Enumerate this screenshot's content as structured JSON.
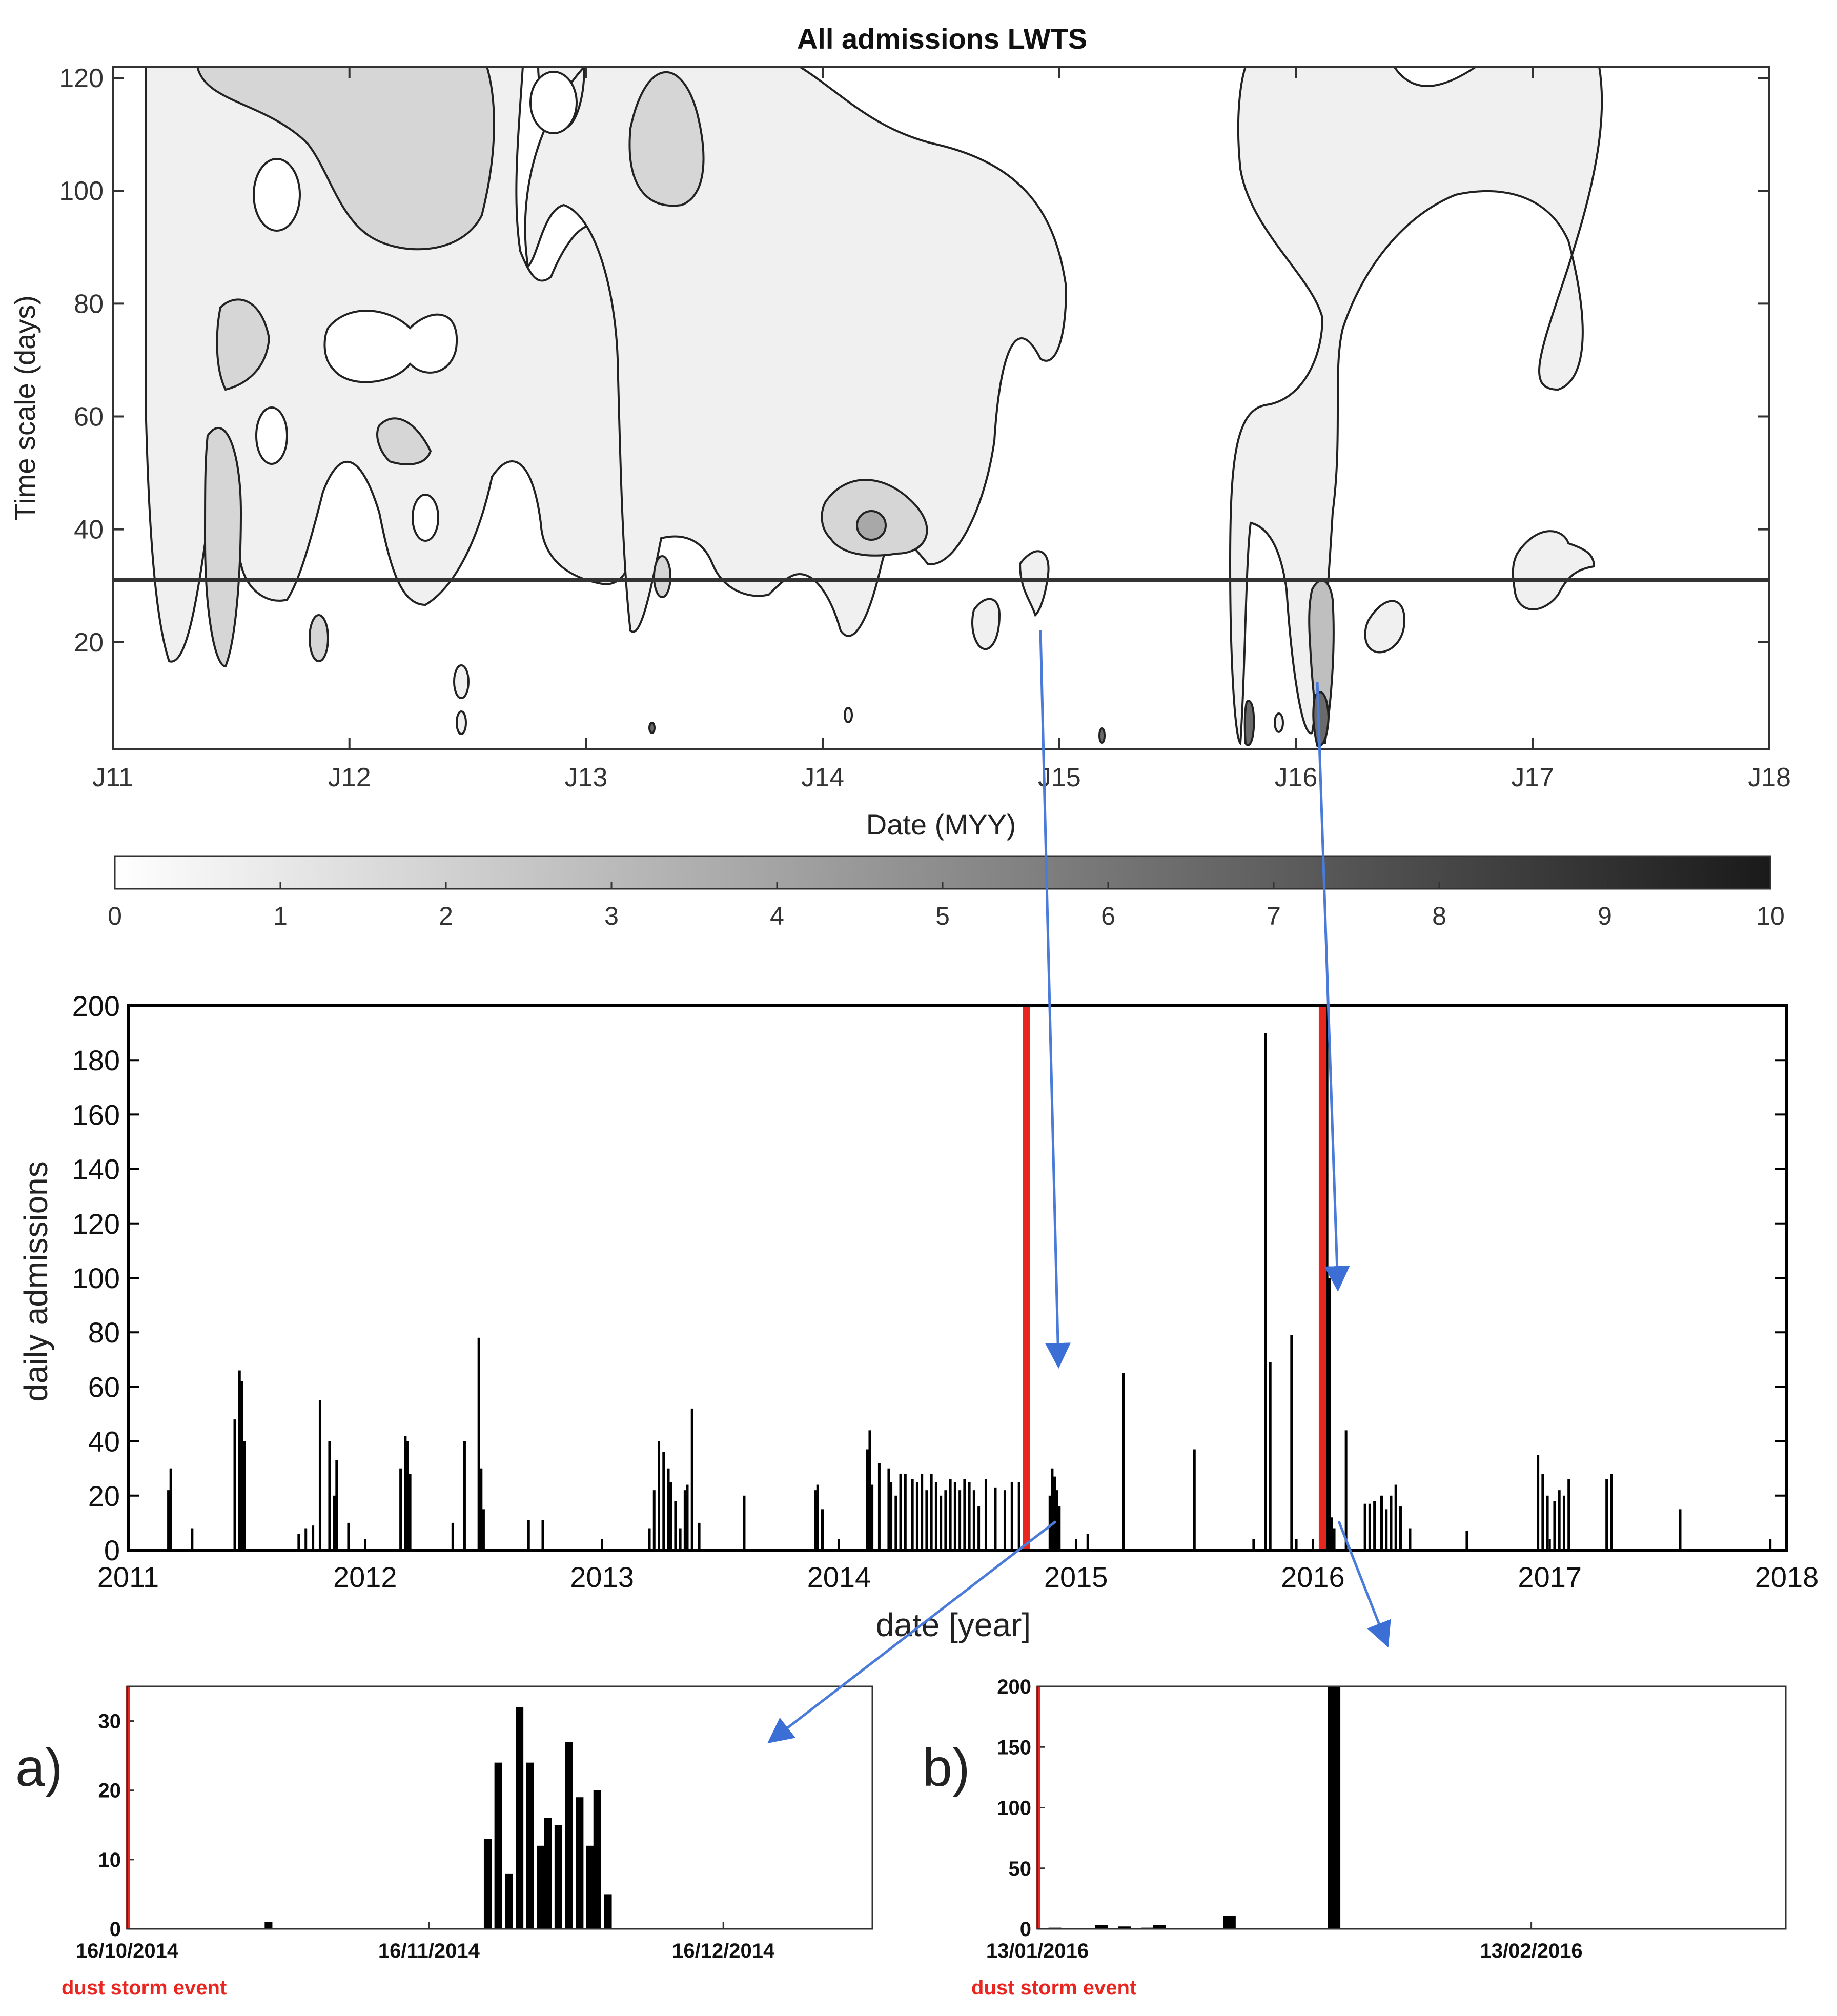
{
  "chart_data": [
    {
      "type": "heatmap",
      "id": "wavelet",
      "title": "All admissions LWTS",
      "xlabel": "Date (MYY)",
      "ylabel": "Time scale (days)",
      "xticks": [
        "J11",
        "J12",
        "J13",
        "J14",
        "J15",
        "J16",
        "J17",
        "J18"
      ],
      "xlim": [
        2011.0,
        2018.0
      ],
      "ylim": [
        1,
        122
      ],
      "yticks": [
        20,
        40,
        60,
        80,
        100,
        120
      ],
      "reference_line_y": 31,
      "colorbar": {
        "min": 0,
        "max": 10,
        "ticks": [
          0,
          1,
          2,
          3,
          4,
          5,
          6,
          7,
          8,
          9,
          10
        ],
        "colormap": [
          "#ffffff",
          "#1a1a1a"
        ]
      },
      "grid": false
    },
    {
      "type": "bar",
      "id": "daily",
      "xlabel": "date [year]",
      "ylabel": "daily admissions",
      "xticks": [
        "2011",
        "2012",
        "2013",
        "2014",
        "2015",
        "2016",
        "2017",
        "2018"
      ],
      "xlim": [
        2011.0,
        2018.0
      ],
      "ylim": [
        0,
        200
      ],
      "yticks": [
        0,
        20,
        40,
        60,
        80,
        100,
        120,
        140,
        160,
        180,
        200
      ],
      "bar_color": "#000000",
      "event_color": "#e8251f",
      "events": [
        2014.79,
        2016.04
      ],
      "series": [
        {
          "x": [
            2011.17,
            2011.18,
            2011.27,
            2011.45,
            2011.47,
            2011.48,
            2011.49,
            2011.72,
            2011.75,
            2011.78,
            2011.81,
            2011.85,
            2011.87,
            2011.88,
            2011.93,
            2012.15,
            2012.17,
            2012.18,
            2012.19,
            2012.37,
            2012.42,
            2012.48,
            2012.49,
            2012.5,
            2012.69,
            2012.75,
            2013.2,
            2013.22,
            2013.24,
            2013.26,
            2013.28,
            2013.29,
            2013.31,
            2013.33,
            2013.35,
            2013.36,
            2013.38,
            2013.41,
            2013.6,
            2013.9,
            2013.91,
            2013.93,
            2014.12,
            2014.13,
            2014.14,
            2014.17,
            2014.21,
            2014.22,
            2014.24,
            2014.26,
            2014.28,
            2014.31,
            2014.33,
            2014.35,
            2014.37,
            2014.39,
            2014.41,
            2014.43,
            2014.45,
            2014.47,
            2014.49,
            2014.51,
            2014.53,
            2014.55,
            2014.57,
            2014.59,
            2014.62,
            2014.66,
            2014.7,
            2014.73,
            2014.76,
            2014.89,
            2014.9,
            2014.91,
            2014.92,
            2014.93,
            2015.05,
            2015.2,
            2015.5,
            2015.75,
            2015.8,
            2015.82,
            2015.91,
            2015.93,
            2016.06,
            2016.07,
            2016.08,
            2016.09,
            2016.14,
            2016.22,
            2016.24,
            2016.26,
            2016.29,
            2016.31,
            2016.33,
            2016.35,
            2016.37,
            2016.41,
            2016.65,
            2016.95,
            2016.97,
            2016.99,
            2017.02,
            2017.04,
            2017.06,
            2017.08,
            2017.24,
            2017.26,
            2017.55,
            2017.93
          ],
          "values": [
            22,
            30,
            8,
            48,
            66,
            62,
            40,
            6,
            8,
            9,
            55,
            40,
            20,
            33,
            10,
            30,
            42,
            40,
            28,
            10,
            40,
            78,
            30,
            15,
            11,
            11,
            8,
            22,
            40,
            36,
            30,
            25,
            18,
            8,
            22,
            24,
            52,
            10,
            20,
            22,
            24,
            15,
            37,
            44,
            24,
            32,
            30,
            25,
            20,
            28,
            28,
            26,
            25,
            28,
            22,
            28,
            25,
            20,
            22,
            26,
            25,
            22,
            26,
            25,
            22,
            16,
            26,
            23,
            22,
            25,
            25,
            20,
            30,
            27,
            22,
            16,
            6,
            65,
            37,
            4,
            190,
            69,
            79,
            4,
            200,
            100,
            12,
            8,
            44,
            17,
            17,
            18,
            20,
            15,
            20,
            24,
            16,
            8,
            7,
            35,
            28,
            20,
            18,
            22,
            20,
            26,
            26,
            28,
            15,
            4
          ]
        }
      ]
    },
    {
      "type": "bar",
      "id": "inset_a",
      "panel_label": "a)",
      "xticks": [
        "16/10/2014",
        "16/11/2014",
        "16/12/2014"
      ],
      "x_start": "2014-10-16",
      "x_days": 77,
      "ylim": [
        0,
        35
      ],
      "yticks": [
        0,
        10,
        20,
        30
      ],
      "event_label": "dust storm event",
      "event_day": 0,
      "series": [
        {
          "x": [
            2014.83,
            2014.892,
            2014.895,
            2014.898,
            2014.901,
            2014.904,
            2014.907,
            2014.909,
            2014.912,
            2014.915,
            2014.918,
            2014.921,
            2014.923,
            2014.926,
            2014.929
          ],
          "values": [
            1,
            13,
            24,
            8,
            32,
            24,
            12,
            16,
            15,
            27,
            19,
            12,
            20,
            5,
            0
          ]
        }
      ]
    },
    {
      "type": "bar",
      "id": "inset_b",
      "panel_label": "b)",
      "xticks": [
        "13/01/2016",
        "13/02/2016"
      ],
      "x_start": "2016-01-13",
      "x_days": 47,
      "ylim": [
        0,
        200
      ],
      "yticks": [
        0,
        50,
        100,
        150,
        200
      ],
      "event_label": "dust storm event",
      "event_day": 0,
      "series": [
        {
          "x": [
            2016.038,
            2016.046,
            2016.05,
            2016.054,
            2016.056,
            2016.068,
            2016.086
          ],
          "values": [
            1,
            3,
            2,
            1,
            3,
            11,
            200
          ]
        }
      ]
    }
  ]
}
